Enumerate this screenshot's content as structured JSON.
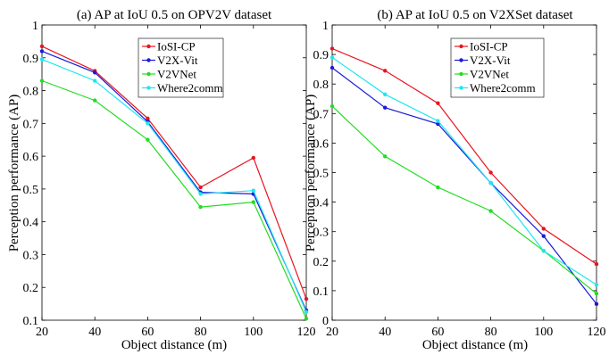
{
  "chart_data": [
    {
      "type": "line",
      "title": "(a) AP at IoU 0.5 on OPV2V dataset",
      "xlabel": "Object distance (m)",
      "ylabel": "Perception performance (AP)",
      "x": [
        20,
        40,
        60,
        80,
        100,
        120
      ],
      "xlim": [
        20,
        120
      ],
      "ylim": [
        0.1,
        1
      ],
      "xticks": [
        "20",
        "40",
        "60",
        "80",
        "100",
        "120"
      ],
      "yticks": [
        "0.1",
        "0.2",
        "0.3",
        "0.4",
        "0.5",
        "0.6",
        "0.7",
        "0.8",
        "0.9",
        "1"
      ],
      "grid": false,
      "legend": "top-right",
      "series": [
        {
          "name": "IoSI-CP",
          "color": "#e8141e",
          "values": [
            0.935,
            0.86,
            0.715,
            0.505,
            0.595,
            0.165
          ]
        },
        {
          "name": "V2X-Vit",
          "color": "#1a1adb",
          "values": [
            0.92,
            0.855,
            0.705,
            0.49,
            0.485,
            0.13
          ]
        },
        {
          "name": "V2VNet",
          "color": "#22dd22",
          "values": [
            0.83,
            0.77,
            0.65,
            0.445,
            0.46,
            0.105
          ]
        },
        {
          "name": "Where2comm",
          "color": "#1ee6f0",
          "values": [
            0.895,
            0.83,
            0.7,
            0.485,
            0.495,
            0.125
          ]
        }
      ]
    },
    {
      "type": "line",
      "title": "(b) AP at IoU 0.5 on V2XSet dataset",
      "xlabel": "Object distance (m)",
      "ylabel": "Perception performance (AP)",
      "x": [
        20,
        40,
        60,
        80,
        100,
        120
      ],
      "xlim": [
        20,
        120
      ],
      "ylim": [
        0,
        1
      ],
      "xticks": [
        "20",
        "40",
        "60",
        "80",
        "100",
        "120"
      ],
      "yticks": [
        "0",
        "0.1",
        "0.2",
        "0.3",
        "0.4",
        "0.5",
        "0.6",
        "0.7",
        "0.8",
        "0.9",
        "1"
      ],
      "grid": false,
      "legend": "top-right",
      "series": [
        {
          "name": "IoSI-CP",
          "color": "#e8141e",
          "values": [
            0.92,
            0.845,
            0.735,
            0.5,
            0.31,
            0.19
          ]
        },
        {
          "name": "V2X-Vit",
          "color": "#1a1adb",
          "values": [
            0.855,
            0.72,
            0.665,
            0.465,
            0.285,
            0.055
          ]
        },
        {
          "name": "V2VNet",
          "color": "#22dd22",
          "values": [
            0.725,
            0.555,
            0.45,
            0.37,
            0.235,
            0.09
          ]
        },
        {
          "name": "Where2comm",
          "color": "#1ee6f0",
          "values": [
            0.89,
            0.765,
            0.675,
            0.465,
            0.235,
            0.12
          ]
        }
      ]
    }
  ]
}
